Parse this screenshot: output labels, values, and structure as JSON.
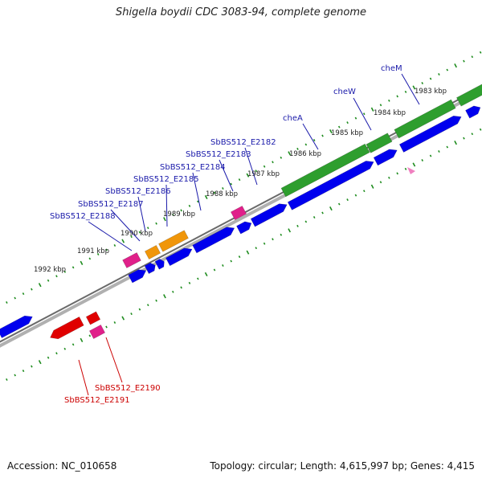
{
  "title": "Shigella boydii CDC 3083-94, complete genome",
  "footer": {
    "accession": "Accession: NC_010658",
    "summary": "Topology: circular; Length: 4,615,997 bp; Genes: 4,415"
  },
  "colors": {
    "forward_gene": "#0000ee",
    "reverse_gene": "#0000ee",
    "green_gene": "#2e9e2e",
    "orange_gene": "#f0960a",
    "pink_gene": "#e0208a",
    "red_gene": "#e00000",
    "backbone": "#888888",
    "tick": "#1e8c1e",
    "label_blue": "#1a1aaa",
    "label_red": "#cc0000"
  },
  "kbp_ticks": [
    "1983 kbp",
    "1984 kbp",
    "1985 kbp",
    "1986 kbp",
    "1987 kbp",
    "1988 kbp",
    "1989 kbp",
    "1990 kbp",
    "1991 kbp",
    "1992 kbp"
  ],
  "gene_labels_blue": [
    "cheM",
    "cheW",
    "cheA",
    "SbBS512_E2182",
    "SbBS512_E2183",
    "SbBS512_E2184",
    "SbBS512_E2185",
    "SbBS512_E2186",
    "SbBS512_E2187",
    "SbBS512_E2188"
  ],
  "gene_labels_red": [
    "SbBS512_E2190",
    "SbBS512_E2191"
  ]
}
